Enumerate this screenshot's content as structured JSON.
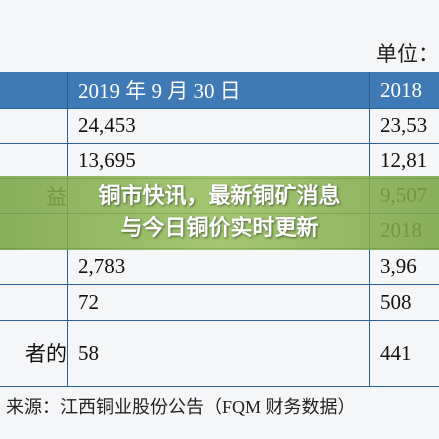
{
  "unit": "单位：",
  "table": {
    "header": [
      "",
      "2019 年 9 月 30 日",
      "2018"
    ],
    "rows": [
      [
        "",
        "24,453",
        "23,53"
      ],
      [
        "",
        "13,695",
        "12,81"
      ],
      [
        "益",
        "",
        "9,507"
      ],
      [
        "",
        "",
        "2018"
      ],
      [
        "",
        "2,783",
        "3,96"
      ],
      [
        "",
        "72",
        "508"
      ],
      [
        "者的",
        "58",
        "441"
      ]
    ]
  },
  "source": "来源：江西铜业股份公告（FQM 财务数据）",
  "banner": {
    "lines": [
      "铜市快讯，最新铜矿消息",
      "与今日铜价实时更新"
    ]
  }
}
